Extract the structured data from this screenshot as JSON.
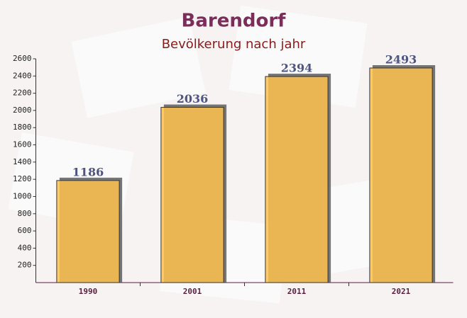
{
  "chart_data": {
    "type": "bar",
    "title": "Barendorf",
    "subtitle": "Bevölkerung nach jahr",
    "categories": [
      "1990",
      "2001",
      "2011",
      "2021"
    ],
    "values": [
      1186,
      2036,
      2394,
      2493
    ],
    "color": "#ffc24d",
    "ylim": [
      0,
      2600
    ],
    "yticks": [
      200,
      400,
      600,
      800,
      1000,
      1200,
      1400,
      1600,
      1800,
      2000,
      2200,
      2400,
      2600
    ]
  }
}
